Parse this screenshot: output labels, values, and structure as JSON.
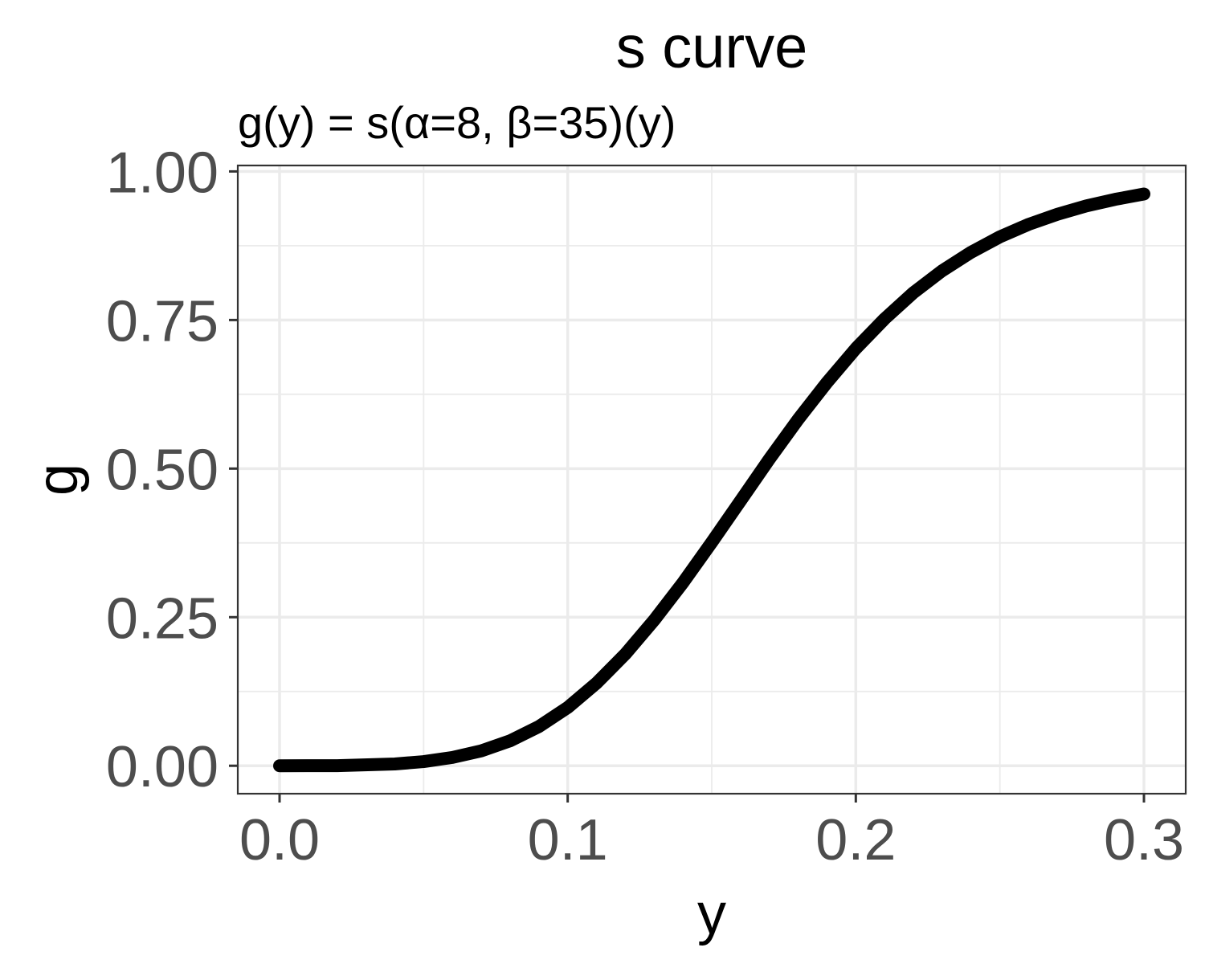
{
  "chart_data": {
    "type": "line",
    "title": "s curve",
    "subtitle": "g(y) = s(α=8, β=35)(y)",
    "xlabel": "y",
    "ylabel": "g",
    "xlim": [
      -0.0145,
      0.3145
    ],
    "ylim": [
      -0.047,
      1.01
    ],
    "x_ticks": [
      0.0,
      0.1,
      0.2,
      0.3
    ],
    "x_tick_labels": [
      "0.0",
      "0.1",
      "0.2",
      "0.3"
    ],
    "y_ticks": [
      0.0,
      0.25,
      0.5,
      0.75,
      1.0
    ],
    "y_tick_labels": [
      "0.00",
      "0.25",
      "0.50",
      "0.75",
      "1.00"
    ],
    "grid": true,
    "series": [
      {
        "color": "#000000",
        "x": [
          0.0,
          0.02,
          0.04,
          0.05,
          0.06,
          0.07,
          0.08,
          0.09,
          0.1,
          0.11,
          0.12,
          0.13,
          0.14,
          0.15,
          0.16,
          0.17,
          0.18,
          0.19,
          0.2,
          0.21,
          0.22,
          0.23,
          0.24,
          0.25,
          0.26,
          0.27,
          0.28,
          0.29,
          0.3
        ],
        "y": [
          0.0,
          0.0002,
          0.003,
          0.007,
          0.014,
          0.025,
          0.042,
          0.066,
          0.098,
          0.139,
          0.188,
          0.245,
          0.308,
          0.376,
          0.446,
          0.516,
          0.583,
          0.645,
          0.702,
          0.752,
          0.796,
          0.833,
          0.864,
          0.89,
          0.911,
          0.928,
          0.942,
          0.953,
          0.962
        ]
      }
    ]
  }
}
